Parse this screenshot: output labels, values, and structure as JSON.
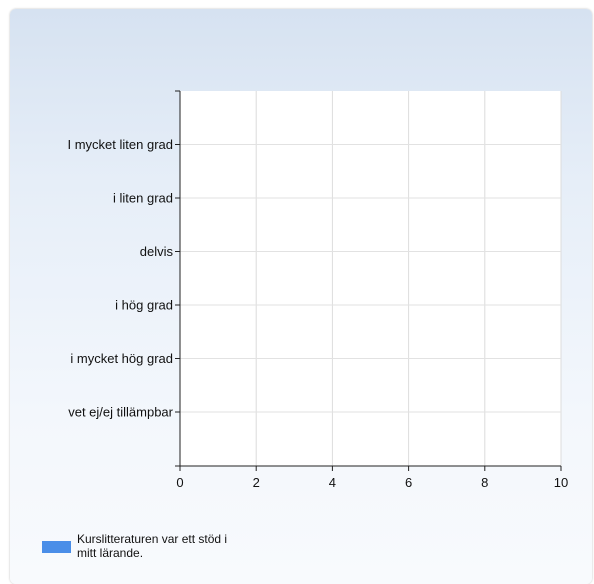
{
  "chart_data": {
    "type": "bar",
    "orientation": "horizontal",
    "categories": [
      "I mycket liten grad",
      "i liten grad",
      "delvis",
      "i hög grad",
      "i mycket hög grad",
      "vet ej/ej tillämpbar"
    ],
    "series": [
      {
        "name": "Kurslitteraturen var ett stöd i mitt lärande.",
        "values": [
          0,
          0,
          0,
          0,
          0,
          0
        ],
        "color": "#4a8ee8"
      }
    ],
    "xlim": [
      0,
      10
    ],
    "xticks": [
      0,
      2,
      4,
      6,
      8,
      10
    ],
    "grid": true,
    "legend_position": "bottom-left"
  }
}
